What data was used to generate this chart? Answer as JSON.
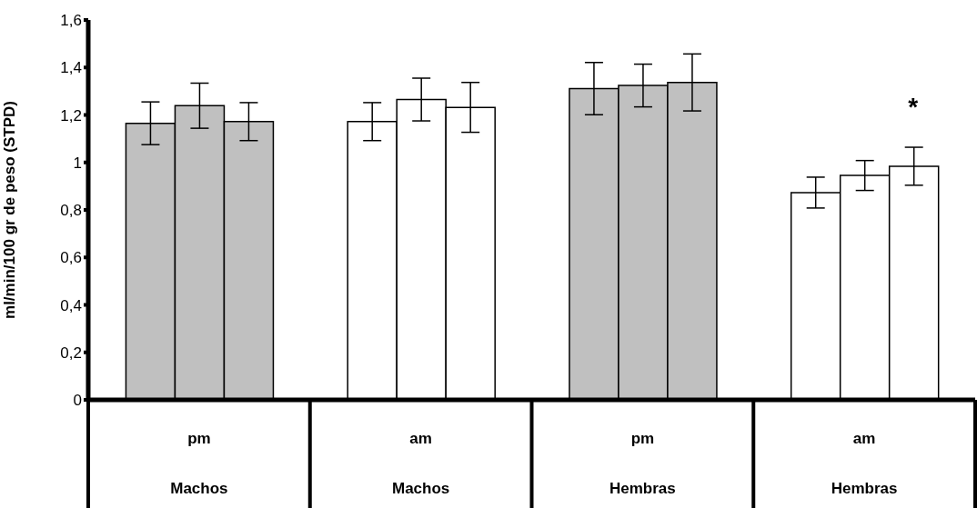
{
  "chart_data": {
    "type": "bar",
    "ylabel": "ml/min/100 gr de peso (STPD)",
    "categories": [
      "pm\nMachos",
      "am\nMachos",
      "pm\nHembras",
      "am\nHembras"
    ],
    "series": [
      {
        "colors": [
          "#c0c0c0",
          "#ffffff",
          "#c0c0c0",
          "#ffffff"
        ],
        "values": [
          1.165,
          1.172,
          1.311,
          0.873
        ],
        "errors": [
          0.09,
          0.08,
          0.11,
          0.065
        ]
      },
      {
        "colors": [
          "#c0c0c0",
          "#ffffff",
          "#c0c0c0",
          "#ffffff"
        ],
        "values": [
          1.239,
          1.265,
          1.324,
          0.945
        ],
        "errors": [
          0.095,
          0.09,
          0.09,
          0.063
        ]
      },
      {
        "colors": [
          "#c0c0c0",
          "#ffffff",
          "#c0c0c0",
          "#ffffff"
        ],
        "values": [
          1.172,
          1.232,
          1.337,
          0.984
        ],
        "errors": [
          0.08,
          0.105,
          0.12,
          0.08
        ]
      }
    ],
    "ylim": [
      0,
      1.6
    ],
    "yticks": [
      {
        "value": 0,
        "label": "0"
      },
      {
        "value": 0.2,
        "label": "0,2"
      },
      {
        "value": 0.4,
        "label": "0,4"
      },
      {
        "value": 0.6,
        "label": "0,6"
      },
      {
        "value": 0.8,
        "label": "0,8"
      },
      {
        "value": 1,
        "label": "1"
      },
      {
        "value": 1.2,
        "label": "1,2"
      },
      {
        "value": 1.4,
        "label": "1,4"
      },
      {
        "value": 1.6,
        "label": "1,6"
      }
    ],
    "annotations": [
      "*"
    ]
  }
}
